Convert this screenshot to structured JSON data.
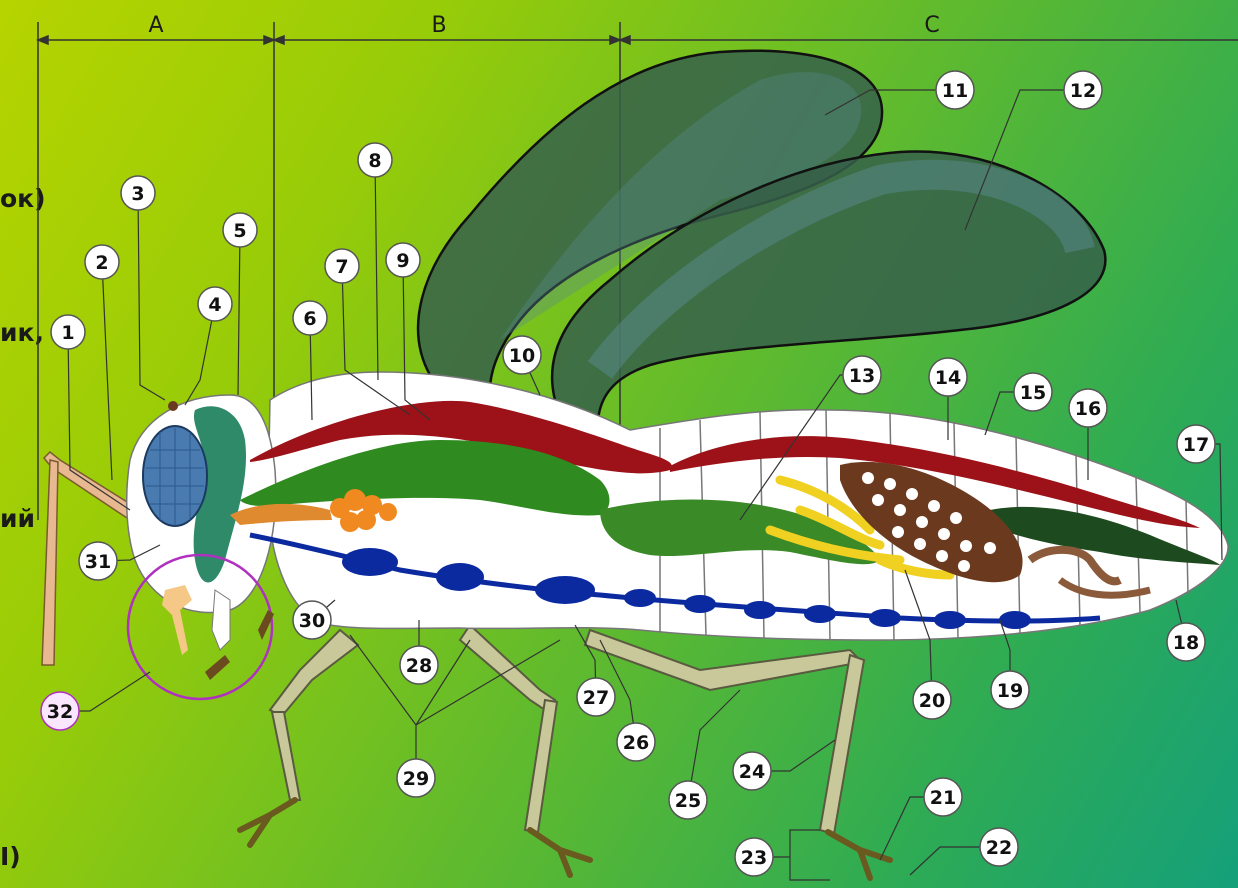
{
  "sections": [
    "A",
    "B",
    "C"
  ],
  "left_fragments": [
    "ок)",
    "ик,",
    "ий",
    "I)"
  ],
  "labels": [
    "1",
    "2",
    "3",
    "4",
    "5",
    "6",
    "7",
    "8",
    "9",
    "10",
    "11",
    "12",
    "13",
    "14",
    "15",
    "16",
    "17",
    "18",
    "19",
    "20",
    "21",
    "22",
    "23",
    "24",
    "25",
    "26",
    "27",
    "28",
    "29",
    "30",
    "31",
    "32"
  ],
  "colors": {
    "background_start": "#b6d400",
    "background_end": "#15a07a",
    "wing": "#36604a",
    "dorsal_vessel": "#9c1218",
    "gut": "#2f8a1f",
    "nerve_cord": "#0b2aa0",
    "eye": "#4a7bb0",
    "ovaries": "#6b3a1e",
    "glands": "#f0d020",
    "legs": "#c8c89a",
    "label_32": "#b030c0"
  }
}
